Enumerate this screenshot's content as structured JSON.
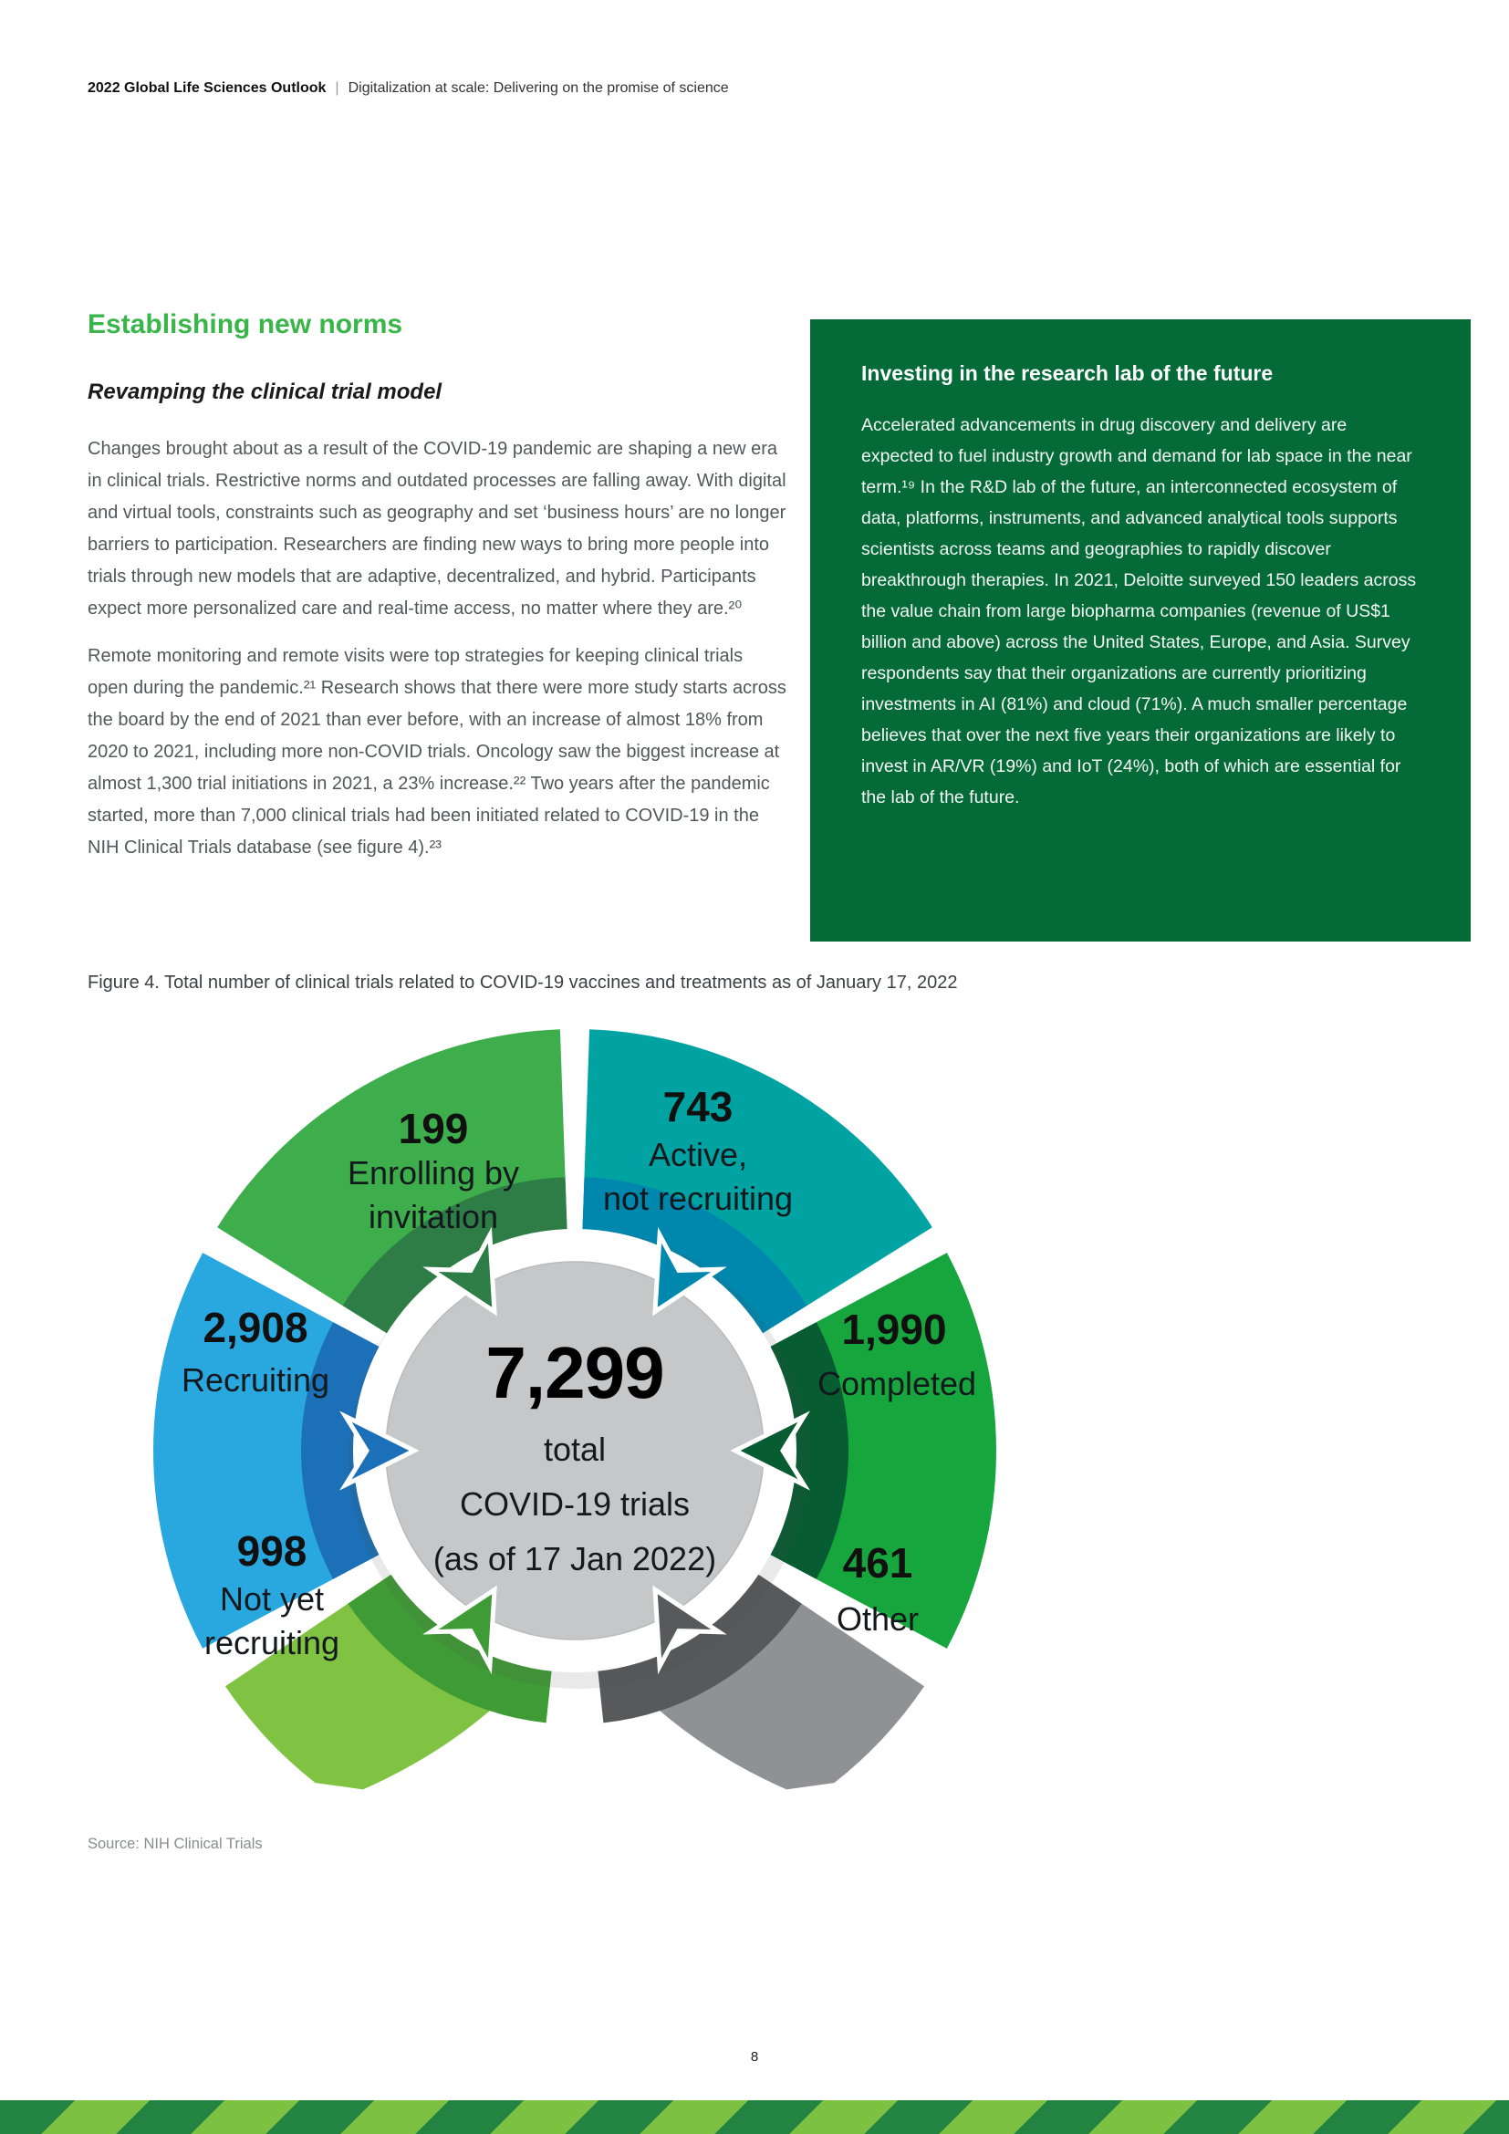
{
  "header": {
    "brand": "2022 Global Life Sciences Outlook",
    "divider": "|",
    "subtitle": "Digitalization at scale: Delivering on the promise of science"
  },
  "article": {
    "heading": "Establishing new norms",
    "subheading": "Revamping the clinical trial model",
    "paragraphs": [
      "Changes brought about as a result of the COVID-19 pandemic are shaping a new era in clinical trials. Restrictive norms and outdated processes are falling away. With digital and virtual tools, constraints such as geography and set ‘business hours’ are no longer barriers to participation. Researchers are finding new ways to bring more people into trials through new models that are adaptive, decentralized, and hybrid. Participants expect more personalized care and real-time access, no matter where they are.²⁰",
      "Remote monitoring and remote visits were top strategies for keeping clinical trials open during the pandemic.²¹ Research shows that there were more study starts across the board by the end of 2021 than ever before, with an increase of almost 18% from 2020 to 2021, including more non-COVID trials. Oncology saw the biggest increase at almost 1,300 trial initiations in 2021, a 23% increase.²² Two years after the pandemic started, more than 7,000 clinical trials had been initiated related to COVID-19 in the NIH Clinical Trials database (see figure 4).²³"
    ]
  },
  "sidebar": {
    "title": "Investing in the research lab of the future",
    "body": "Accelerated advancements in drug discovery and delivery are expected to fuel industry growth and demand for lab space in the near term.¹⁹ In the R&D lab of the future, an interconnected ecosystem of data, platforms, instruments, and advanced analytical tools supports scientists across teams and geographies to rapidly discover breakthrough therapies. In 2021, Deloitte surveyed 150 leaders across the value chain from large biopharma companies (revenue of US$1 billion and above) across the United States, Europe, and Asia. Survey respondents say that their organizations are currently prioritizing investments in AI (81%) and cloud (71%). A much smaller percentage believes that over the next five years their organizations are likely to invest in AR/VR (19%) and IoT (24%), both of which are essential for the lab of the future."
  },
  "figure": {
    "caption": "Figure 4. Total number of clinical trials related to COVID-19 vaccines and treatments as of January 17, 2022",
    "source": "Source: NIH Clinical Trials"
  },
  "page_number": "8",
  "colors": {
    "heading_green": "#39B54A",
    "box_green": "#046A38",
    "stripe_dark": "#238442",
    "stripe_light": "#7DC142",
    "body_text": "#53565A"
  },
  "chart_data": {
    "type": "pie",
    "title": "Total number of clinical trials related to COVID-19 vaccines and treatments as of January 17, 2022",
    "center_color": "#C6C7C9",
    "center": {
      "total": "7,299",
      "line1": "total",
      "line2": "COVID-19 trials",
      "line3": "(as of 17 Jan 2022)"
    },
    "segments": [
      {
        "id": "active-not-recruiting",
        "value": "743",
        "value_num": 743,
        "label": "Active,\nnot recruiting",
        "color": "#00A3A1",
        "dark": "#0087AE"
      },
      {
        "id": "completed",
        "value": "1,990",
        "value_num": 1990,
        "label": "Completed",
        "color": "#17A63E",
        "dark": "#075C31"
      },
      {
        "id": "other",
        "value": "461",
        "value_num": 461,
        "label": "Other",
        "color": "#8F9194",
        "dark": "#58595B"
      },
      {
        "id": "not-yet-recruiting",
        "value": "998",
        "value_num": 998,
        "label": "Not yet\nrecruiting",
        "color": "#80C342",
        "dark": "#3F9B35"
      },
      {
        "id": "recruiting",
        "value": "2,908",
        "value_num": 2908,
        "label": "Recruiting",
        "color": "#29A8E0",
        "dark": "#1C70B7"
      },
      {
        "id": "enrolling-by-invitation",
        "value": "199",
        "value_num": 199,
        "label": "Enrolling by\ninvitation",
        "color": "#3DAE4B",
        "dark": "#2F7D46"
      }
    ],
    "total_num": 7299,
    "legend_position": "labels-on-segments"
  }
}
